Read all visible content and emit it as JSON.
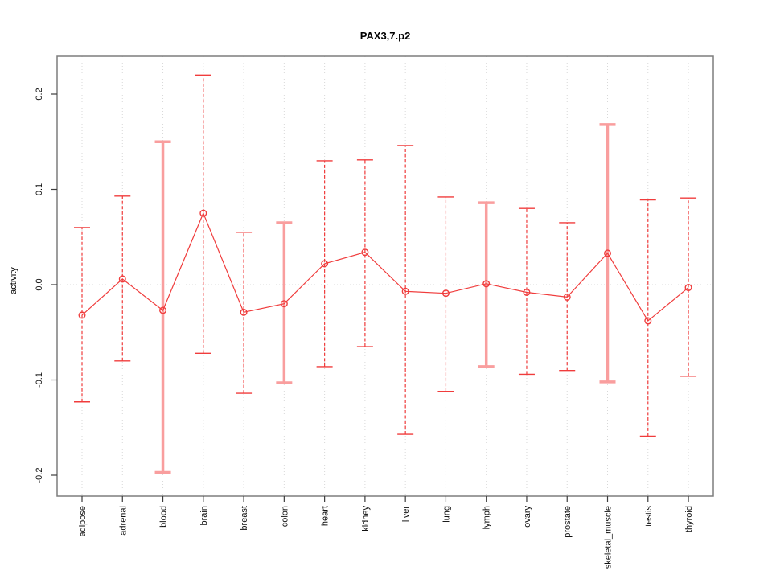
{
  "chart_data": {
    "type": "line",
    "title": "PAX3,7.p2",
    "xlabel": "",
    "ylabel": "activity",
    "categories": [
      "adipose",
      "adrenal",
      "blood",
      "brain",
      "breast",
      "colon",
      "heart",
      "kidney",
      "liver",
      "lung",
      "lymph",
      "ovary",
      "prostate",
      "skeletal_muscle",
      "testis",
      "thyroid"
    ],
    "series": [
      {
        "name": "activity",
        "values": [
          -0.032,
          0.006,
          -0.027,
          0.075,
          -0.029,
          -0.02,
          0.022,
          0.034,
          -0.007,
          -0.009,
          0.001,
          -0.008,
          -0.013,
          0.033,
          -0.038,
          -0.003
        ],
        "lower": [
          -0.123,
          -0.08,
          -0.197,
          -0.072,
          -0.114,
          -0.103,
          -0.086,
          -0.065,
          -0.157,
          -0.112,
          -0.086,
          -0.094,
          -0.09,
          -0.102,
          -0.159,
          -0.096
        ],
        "upper": [
          0.06,
          0.093,
          0.15,
          0.22,
          0.055,
          0.065,
          0.13,
          0.131,
          0.146,
          0.092,
          0.086,
          0.08,
          0.065,
          0.168,
          0.089,
          0.091
        ]
      }
    ],
    "ytick_labels": [
      "-0.2",
      "-0.1",
      "0.0",
      "0.1",
      "0.2"
    ],
    "ytick_values": [
      -0.2,
      -0.1,
      0.0,
      0.1,
      0.2
    ],
    "ylim": [
      -0.222,
      0.24
    ],
    "legend": "none",
    "grid": {
      "vertical_dotted_at_categories": true,
      "horizontal_dotted_at_zero": true
    },
    "thick_bar_categories": [
      "blood",
      "colon",
      "lymph",
      "skeletal_muscle"
    ],
    "colors": {
      "series": "#f03c3c",
      "thick_bar": "#f99e9e",
      "grid": "#d8d8d8",
      "box": "#7d7d7d",
      "tick": "#3c3c3c",
      "text": "#000000",
      "background": "#ffffff"
    }
  }
}
